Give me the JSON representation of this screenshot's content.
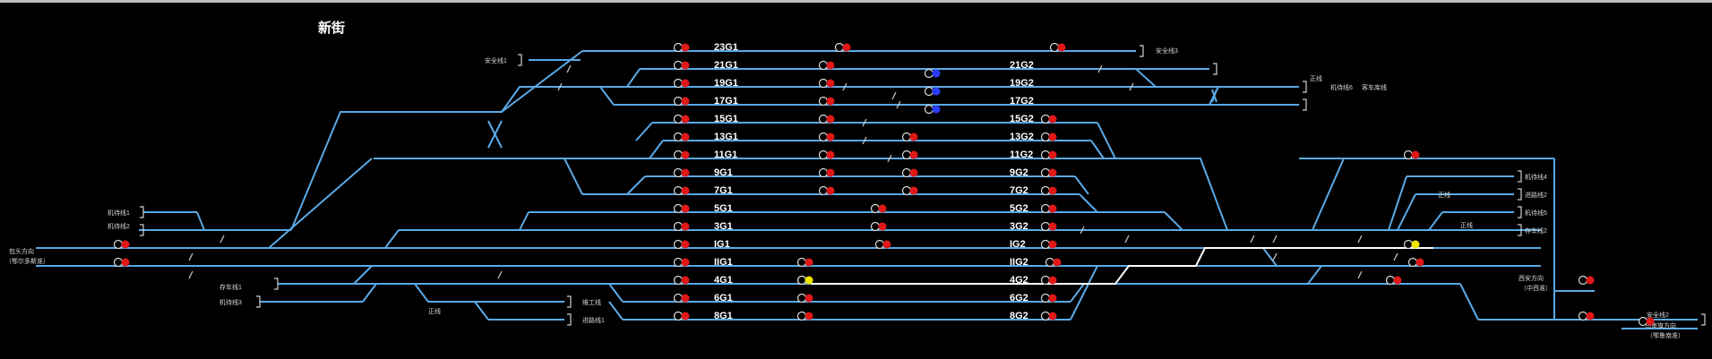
{
  "station": {
    "name": "新街"
  },
  "colors": {
    "track": "#5aa9e6",
    "route": "#ffffff",
    "red": "#e01818",
    "blue": "#2a3cff",
    "yellow": "#f2e600"
  },
  "track_labels": [
    {
      "id": "23G1",
      "text": "23G1"
    },
    {
      "id": "21G1",
      "text": "21G1"
    },
    {
      "id": "21G2",
      "text": "21G2"
    },
    {
      "id": "19G1",
      "text": "19G1"
    },
    {
      "id": "19G2",
      "text": "19G2"
    },
    {
      "id": "17G1",
      "text": "17G1"
    },
    {
      "id": "17G2",
      "text": "17G2"
    },
    {
      "id": "15G1",
      "text": "15G1"
    },
    {
      "id": "15G2",
      "text": "15G2"
    },
    {
      "id": "13G1",
      "text": "13G1"
    },
    {
      "id": "13G2",
      "text": "13G2"
    },
    {
      "id": "11G1",
      "text": "11G1"
    },
    {
      "id": "11G2",
      "text": "11G2"
    },
    {
      "id": "9G1",
      "text": "9G1"
    },
    {
      "id": "9G2",
      "text": "9G2"
    },
    {
      "id": "7G1",
      "text": "7G1"
    },
    {
      "id": "7G2",
      "text": "7G2"
    },
    {
      "id": "5G1",
      "text": "5G1"
    },
    {
      "id": "5G2",
      "text": "5G2"
    },
    {
      "id": "3G1",
      "text": "3G1"
    },
    {
      "id": "3G2",
      "text": "3G2"
    },
    {
      "id": "IG1",
      "text": "IG1"
    },
    {
      "id": "IG2",
      "text": "IG2"
    },
    {
      "id": "IIG1",
      "text": "IIG1"
    },
    {
      "id": "IIG2",
      "text": "IIG2"
    },
    {
      "id": "4G1",
      "text": "4G1"
    },
    {
      "id": "4G2",
      "text": "4G2"
    },
    {
      "id": "6G1",
      "text": "6G1"
    },
    {
      "id": "6G2",
      "text": "6G2"
    },
    {
      "id": "8G1",
      "text": "8G1"
    },
    {
      "id": "8G2",
      "text": "8G2"
    }
  ],
  "small_labels": [
    {
      "id": "safety1",
      "text": "安全线1"
    },
    {
      "id": "safety3",
      "text": "安全线3"
    },
    {
      "id": "safety2",
      "text": "安全线2"
    },
    {
      "id": "dir_left",
      "text": "包头方向"
    },
    {
      "id": "dir_left2",
      "text": "（鄂尔多斯准）"
    },
    {
      "id": "dir_mid",
      "text": "西安方向"
    },
    {
      "id": "dir_mid2",
      "text": "（中西准）"
    },
    {
      "id": "dir_right",
      "text": "乌审旗方向"
    },
    {
      "id": "dir_right2",
      "text": "（鄂鲁南准）"
    },
    {
      "id": "l_deadend1",
      "text": "机待线1"
    },
    {
      "id": "l_deadend2",
      "text": "机待线2"
    },
    {
      "id": "l_deadend3",
      "text": "机待线3"
    },
    {
      "id": "l_deadend4",
      "text": "机待线4"
    },
    {
      "id": "l_deadend5",
      "text": "机待线5"
    },
    {
      "id": "l_deadend6",
      "text": "机待线6"
    },
    {
      "id": "l_storage1",
      "text": "存车线1"
    },
    {
      "id": "l_storage2",
      "text": "存车线2"
    },
    {
      "id": "l_arrive1",
      "text": "进路线1"
    },
    {
      "id": "l_arrive2",
      "text": "进路线2"
    },
    {
      "id": "l_repair",
      "text": "维工线"
    },
    {
      "id": "l_car",
      "text": "客车库线"
    },
    {
      "id": "l_zdjk1",
      "text": "正线"
    },
    {
      "id": "l_zdjk2",
      "text": "正线"
    },
    {
      "id": "l_zdjk3",
      "text": "正线"
    },
    {
      "id": "l_zdjk4",
      "text": "正线"
    }
  ]
}
